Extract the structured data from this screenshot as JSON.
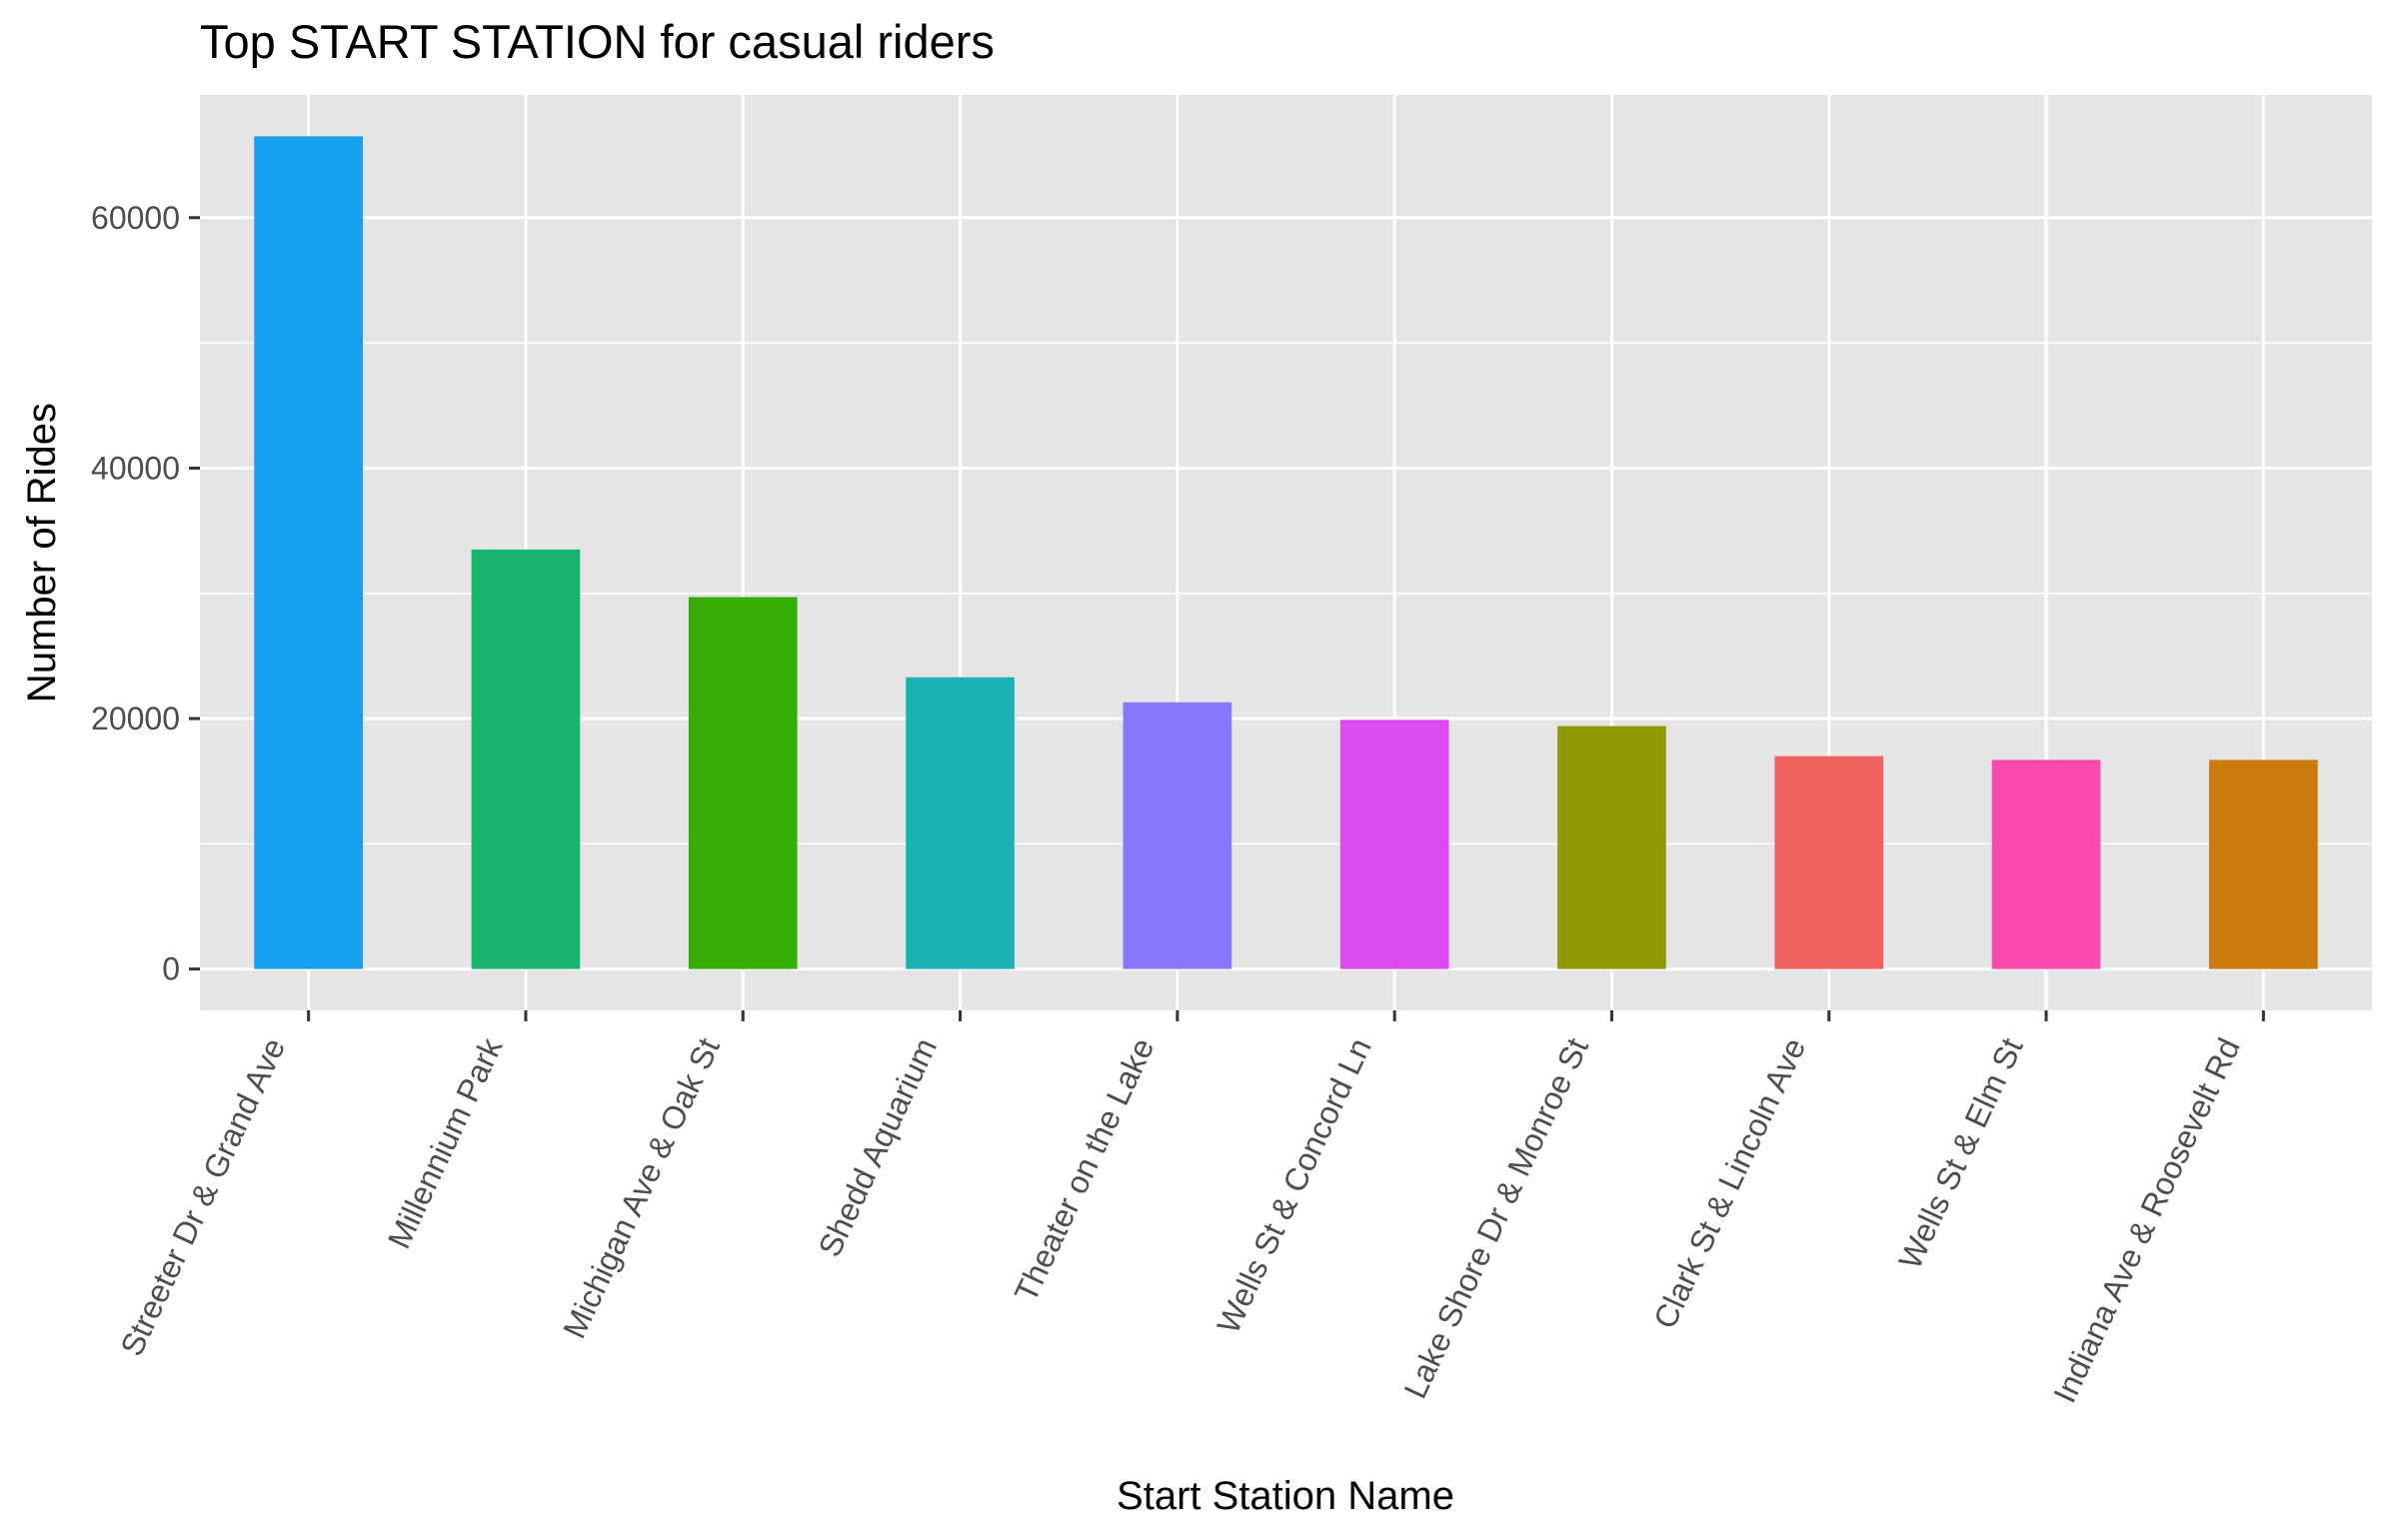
{
  "chart_data": {
    "type": "bar",
    "title": "Top START STATION for casual riders",
    "xlabel": "Start Station Name",
    "ylabel": "Number of Rides",
    "categories": [
      "Streeter Dr & Grand Ave",
      "Millennium Park",
      "Michigan Ave & Oak St",
      "Shedd Aquarium",
      "Theater on the Lake",
      "Wells St & Concord Ln",
      "Lake Shore Dr & Monroe St",
      "Clark St & Lincoln Ave",
      "Wells St & Elm St",
      "Indiana Ave & Roosevelt Rd"
    ],
    "values": [
      66500,
      33500,
      29700,
      23300,
      21300,
      19900,
      19400,
      17000,
      16700,
      16700
    ],
    "colors": [
      "#169FEF",
      "#19B56F",
      "#35AD04",
      "#19B2B5",
      "#8778FF",
      "#DC4AF0",
      "#8F9904",
      "#F0605C",
      "#FA49AF",
      "#CB7A0C"
    ],
    "yticks": [
      0,
      20000,
      40000,
      60000
    ],
    "ytick_labels": [
      "0",
      "20000",
      "40000",
      "60000"
    ],
    "ylim": [
      -3300,
      69800
    ],
    "grid": true,
    "legend": "none",
    "background": "#E5E5E5",
    "gridline_color": "#FFFFFF"
  }
}
